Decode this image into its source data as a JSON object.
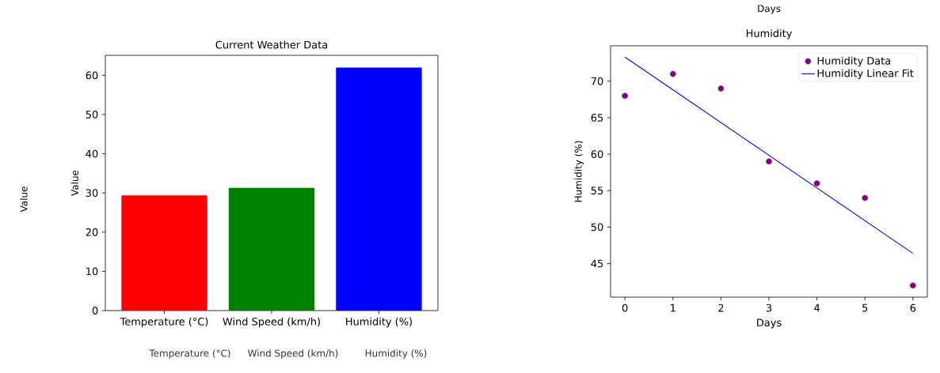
{
  "chart_data": [
    {
      "type": "bar",
      "title": "Current Weather Data",
      "ylabel": "Value",
      "categories": [
        "Temperature (°C)",
        "Wind Speed (km/h)",
        "Humidity (%)"
      ],
      "values": [
        29.4,
        31.3,
        62.0
      ],
      "colors": [
        "#ff0000",
        "#008000",
        "#0000ff"
      ],
      "ylim": [
        0,
        65.1
      ],
      "yticks": [
        0,
        10,
        20,
        30,
        40,
        50,
        60
      ],
      "annotations": [
        "Value",
        "Temperature (°C)",
        "Wind Speed (km/h)",
        "Humidity (%)"
      ]
    },
    {
      "type": "scatter",
      "title": "Humidity",
      "xlabel": "Days",
      "ylabel": "Humidity (%)",
      "series": [
        {
          "name": "Humidity Data",
          "type": "scatter",
          "marker": "circle",
          "color": "#800080",
          "x": [
            0,
            1,
            2,
            3,
            4,
            5,
            6
          ],
          "values": [
            68,
            71,
            69,
            59,
            56,
            54,
            42
          ]
        },
        {
          "name": "Humidity Linear Fit",
          "type": "line",
          "color": "#0000ff",
          "x": [
            0,
            6
          ],
          "values": [
            73.3,
            46.4
          ]
        }
      ],
      "xlim": [
        -0.3,
        6.3
      ],
      "xticks": [
        0,
        1,
        2,
        3,
        4,
        5,
        6
      ],
      "ylim": [
        40.4,
        74.85
      ],
      "yticks": [
        45,
        50,
        55,
        60,
        65,
        70
      ],
      "legend": "top right",
      "annotations": [
        "Days"
      ]
    }
  ]
}
